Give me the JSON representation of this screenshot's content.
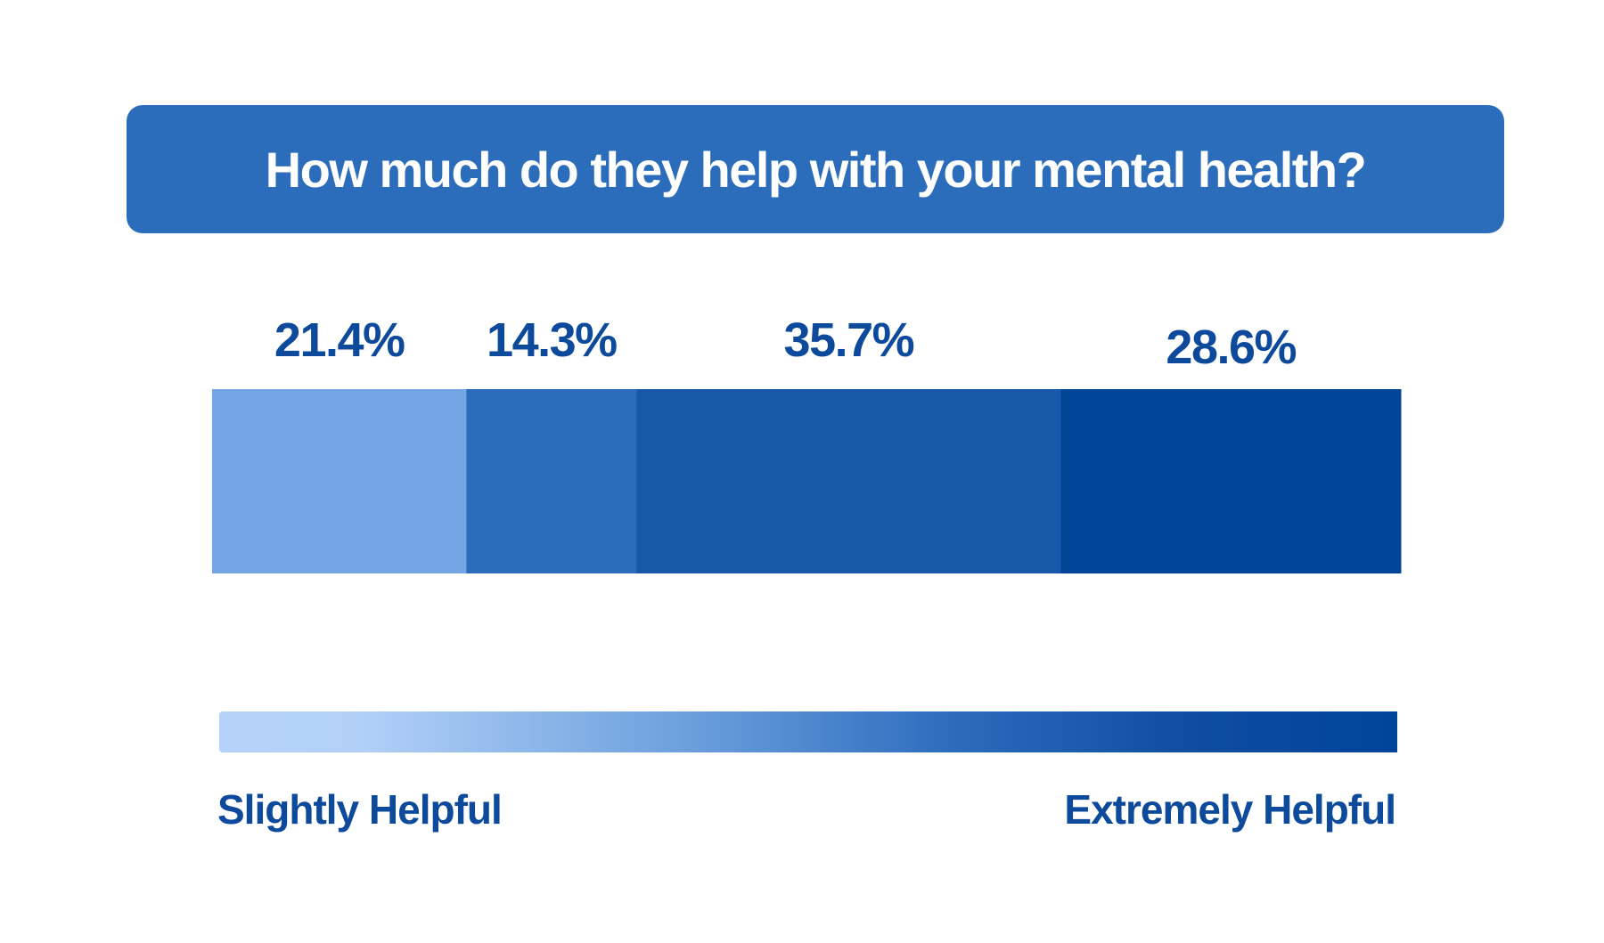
{
  "chart_data": {
    "type": "bar",
    "orientation": "horizontal-stacked",
    "title": "How much do they help with your mental health?",
    "categories": [
      "Slightly Helpful",
      "",
      "",
      "Extremely Helpful"
    ],
    "segments": [
      {
        "value": 21.4,
        "label": "21.4%",
        "color": "#74a6e5"
      },
      {
        "value": 14.3,
        "label": "14.3%",
        "color": "#2b6cbb"
      },
      {
        "value": 35.7,
        "label": "35.7%",
        "color": "#1858a8"
      },
      {
        "value": 28.6,
        "label": "28.6%",
        "color": "#004597"
      }
    ],
    "total": 100,
    "scale": {
      "low_label": "Slightly Helpful",
      "high_label": "Extremely Helpful"
    }
  }
}
